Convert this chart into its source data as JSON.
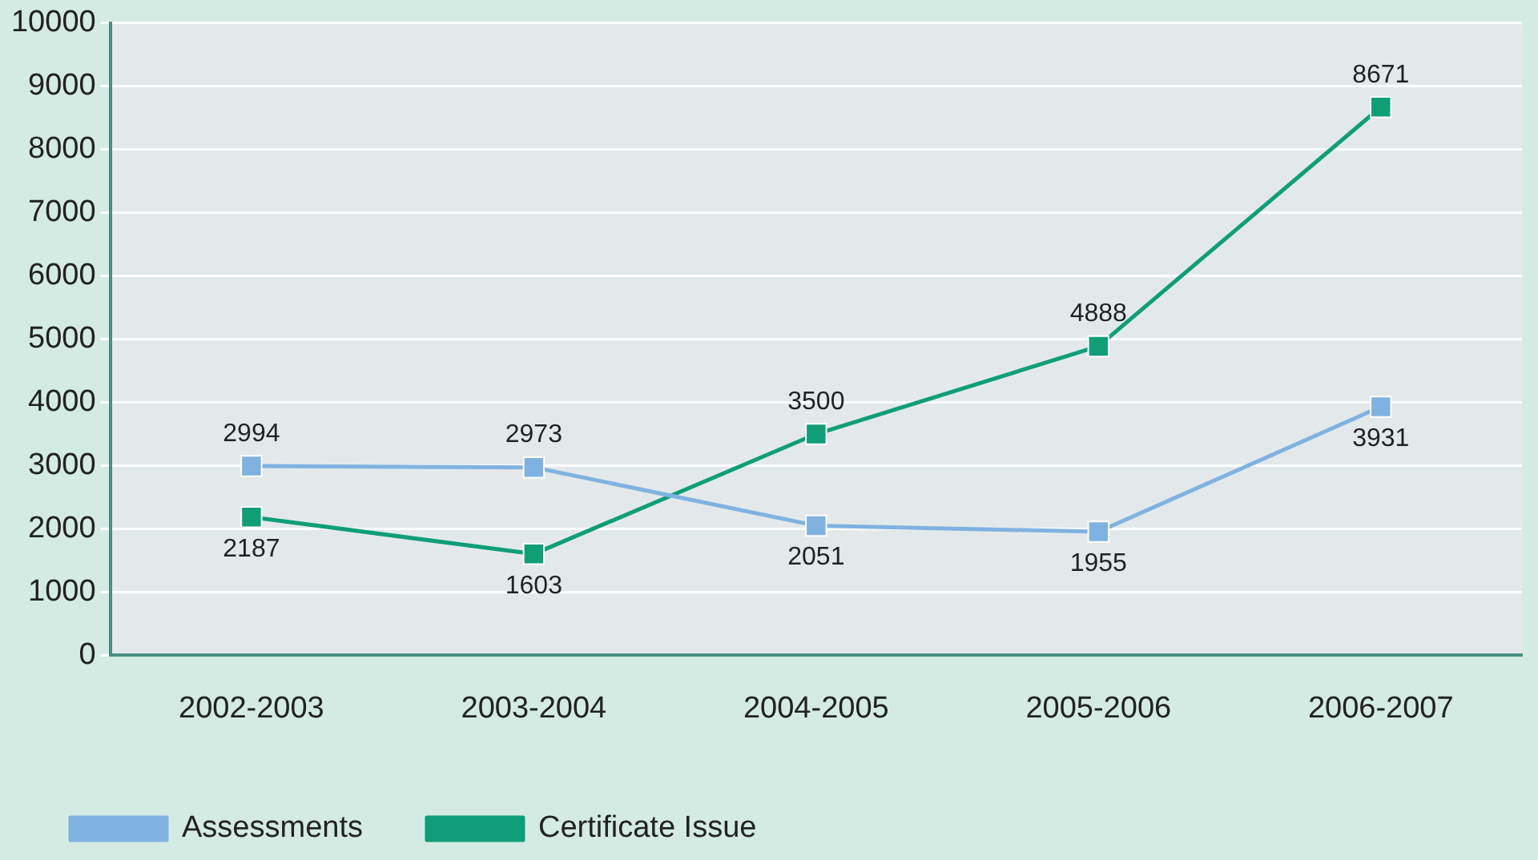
{
  "chart_data": {
    "type": "line",
    "categories": [
      "2002-2003",
      "2003-2004",
      "2004-2005",
      "2005-2006",
      "2006-2007"
    ],
    "series": [
      {
        "name": "Assessments",
        "color": "#7fb2e0",
        "values": [
          2994,
          2973,
          2051,
          1955,
          3931
        ]
      },
      {
        "name": "Certificate Issue",
        "color": "#0f9e78",
        "values": [
          2187,
          1603,
          3500,
          4888,
          8671
        ]
      }
    ],
    "ylim": [
      0,
      10000
    ],
    "yticks": [
      0,
      1000,
      2000,
      3000,
      4000,
      5000,
      6000,
      7000,
      8000,
      9000,
      10000
    ],
    "grid": "y",
    "legend": "bottom left",
    "marker": "square",
    "line_style": "solid",
    "data_labels": true
  }
}
